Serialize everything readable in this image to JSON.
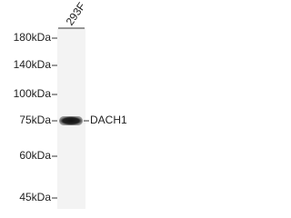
{
  "lane": {
    "label": "293F"
  },
  "markers": [
    {
      "label": "180kDa"
    },
    {
      "label": "140kDa"
    },
    {
      "label": "100kDa"
    },
    {
      "label": "75kDa"
    },
    {
      "label": "60kDa"
    },
    {
      "label": "45kDa"
    }
  ],
  "band": {
    "label": "DACH1"
  }
}
